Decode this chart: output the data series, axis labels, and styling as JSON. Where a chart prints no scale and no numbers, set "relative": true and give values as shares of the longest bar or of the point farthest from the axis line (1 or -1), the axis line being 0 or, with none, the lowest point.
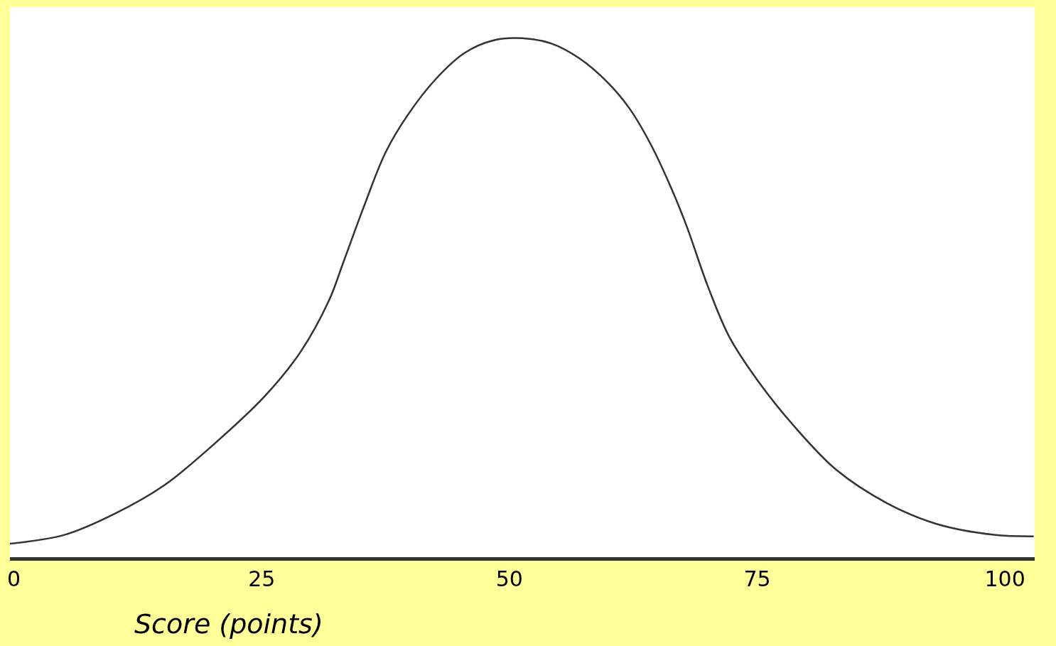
{
  "chart_data": {
    "type": "line",
    "relative": true,
    "xlabel": "Score (points)",
    "xlim": [
      -0.4,
      103
    ],
    "xticks": [
      0,
      25,
      50,
      75,
      100
    ],
    "marker": "none",
    "line_style": "solid",
    "series": [
      {
        "color": "#333333",
        "x": [
          -0.4,
          5.1,
          10.1,
          15.2,
          20.2,
          25.3,
          28.9,
          31.8,
          33.2,
          35.4,
          37.5,
          39.7,
          42.6,
          45.5,
          48.4,
          51.3,
          54.2,
          57.0,
          59.9,
          62.1,
          64.3,
          66.4,
          67.9,
          70.0,
          72.2,
          75.1,
          78.7,
          83.0,
          88.1,
          93.1,
          98.9,
          102.9
        ],
        "values": [
          0.026,
          0.043,
          0.083,
          0.139,
          0.218,
          0.31,
          0.395,
          0.495,
          0.566,
          0.68,
          0.78,
          0.851,
          0.922,
          0.972,
          0.996,
          1,
          0.99,
          0.962,
          0.915,
          0.865,
          0.794,
          0.708,
          0.637,
          0.523,
          0.424,
          0.339,
          0.253,
          0.168,
          0.104,
          0.064,
          0.043,
          0.04
        ]
      }
    ]
  }
}
